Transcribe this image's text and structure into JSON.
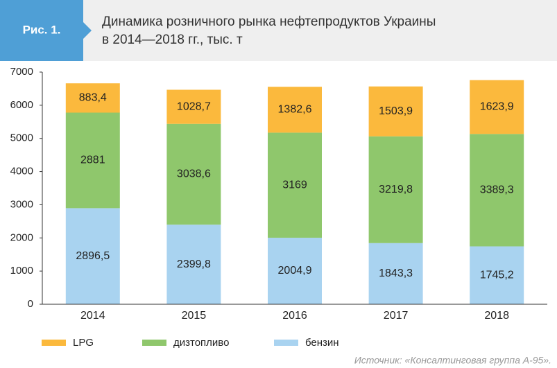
{
  "chart_data": {
    "type": "stacked-bar",
    "figure_label": "Рис. 1.",
    "title": "Динамика розничного рынка нефтепродуктов Украины",
    "subtitle": "в 2014—2018 гг., тыс. т",
    "categories": [
      "2014",
      "2015",
      "2016",
      "2017",
      "2018"
    ],
    "series": [
      {
        "name": "LPG",
        "color": "#fbb93d",
        "values": [
          883.4,
          1028.7,
          1382.6,
          1503.9,
          1623.9
        ],
        "value_labels": [
          "883,4",
          "1028,7",
          "1382,6",
          "1503,9",
          "1623,9"
        ]
      },
      {
        "name": "дизтопливо",
        "color": "#8fc76c",
        "values": [
          2881,
          3038.6,
          3169,
          3219.8,
          3389.3
        ],
        "value_labels": [
          "2881",
          "3038,6",
          "3169",
          "3219,8",
          "3389,3"
        ]
      },
      {
        "name": "бензин",
        "color": "#a9d3f0",
        "values": [
          2896.5,
          2399.8,
          2004.9,
          1843.3,
          1745.2
        ],
        "value_labels": [
          "2896,5",
          "2399,8",
          "2004,9",
          "1843,3",
          "1745,2"
        ]
      }
    ],
    "ylim": [
      0,
      7000
    ],
    "yticks": [
      0,
      1000,
      2000,
      3000,
      4000,
      5000,
      6000,
      7000
    ],
    "source": "Источник: «Консалтинговая группа А-95»."
  }
}
